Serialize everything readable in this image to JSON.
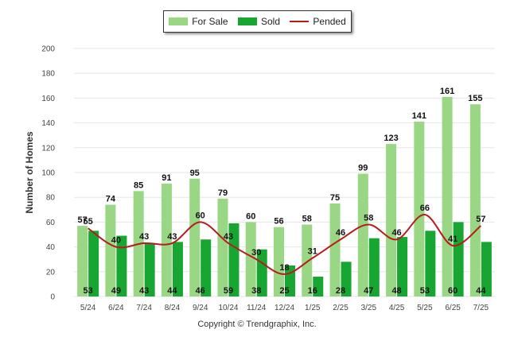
{
  "legend": {
    "for_sale": "For Sale",
    "sold": "Sold",
    "pended": "Pended"
  },
  "copyright": "Copyright © Trendgraphix, Inc.",
  "colors": {
    "for_sale": "#9ad785",
    "sold": "#18a632",
    "pended": "#b71c1c",
    "grid": "#e6e6e6"
  },
  "chart_data": {
    "type": "bar",
    "title": "",
    "xlabel": "",
    "ylabel": "Number of Homes",
    "ylim": [
      0,
      200
    ],
    "yticks": [
      0,
      20,
      40,
      60,
      80,
      100,
      120,
      140,
      160,
      180,
      200
    ],
    "grid": true,
    "legend_position": "top",
    "categories": [
      "5/24",
      "6/24",
      "7/24",
      "8/24",
      "9/24",
      "10/24",
      "11/24",
      "12/24",
      "1/25",
      "2/25",
      "3/25",
      "4/25",
      "5/25",
      "6/25",
      "7/25"
    ],
    "series": [
      {
        "name": "For Sale",
        "type": "bar",
        "values": [
          57,
          74,
          85,
          91,
          95,
          79,
          60,
          56,
          58,
          75,
          99,
          123,
          141,
          161,
          155
        ]
      },
      {
        "name": "Sold",
        "type": "bar",
        "values": [
          53,
          49,
          43,
          44,
          46,
          59,
          38,
          25,
          16,
          28,
          47,
          48,
          53,
          60,
          44
        ]
      },
      {
        "name": "Pended",
        "type": "line",
        "values": [
          55,
          40,
          43,
          43,
          60,
          43,
          30,
          18,
          31,
          46,
          58,
          46,
          66,
          41,
          57
        ]
      }
    ]
  }
}
